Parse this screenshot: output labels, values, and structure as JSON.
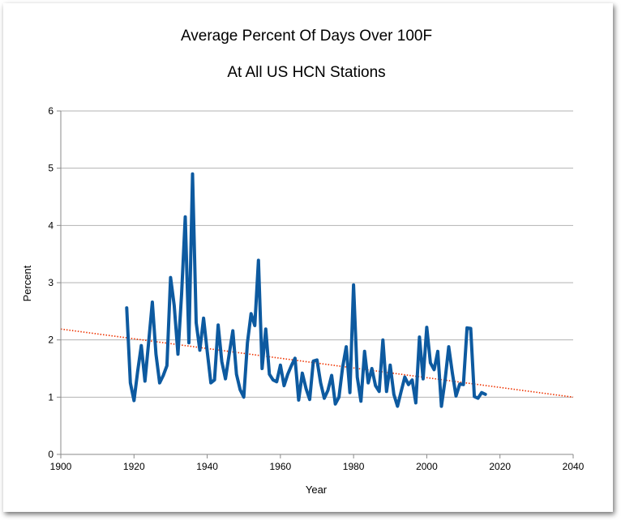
{
  "chart_data": {
    "type": "line",
    "title": "Average Percent Of Days Over 100F",
    "subtitle": "At All US HCN Stations",
    "xlabel": "Year",
    "ylabel": "Percent",
    "xlim": [
      1900,
      2040
    ],
    "ylim": [
      0,
      6
    ],
    "x_ticks": [
      "1900",
      "1920",
      "1940",
      "1960",
      "1980",
      "2000",
      "2020",
      "2040"
    ],
    "y_ticks": [
      "0",
      "1",
      "2",
      "3",
      "4",
      "5",
      "6"
    ],
    "grid": "horizontal",
    "legend": "none",
    "series": [
      {
        "color": "#0d5aa0",
        "points": [
          [
            1918,
            2.56
          ],
          [
            1919,
            1.25
          ],
          [
            1920,
            0.94
          ],
          [
            1921,
            1.45
          ],
          [
            1922,
            1.9
          ],
          [
            1923,
            1.28
          ],
          [
            1924,
            1.95
          ],
          [
            1925,
            2.66
          ],
          [
            1926,
            1.75
          ],
          [
            1927,
            1.25
          ],
          [
            1928,
            1.38
          ],
          [
            1929,
            1.55
          ],
          [
            1930,
            3.09
          ],
          [
            1931,
            2.6
          ],
          [
            1932,
            1.75
          ],
          [
            1933,
            2.8
          ],
          [
            1934,
            4.15
          ],
          [
            1935,
            1.95
          ],
          [
            1936,
            4.9
          ],
          [
            1937,
            2.3
          ],
          [
            1938,
            1.82
          ],
          [
            1939,
            2.38
          ],
          [
            1940,
            1.8
          ],
          [
            1941,
            1.25
          ],
          [
            1942,
            1.3
          ],
          [
            1943,
            2.26
          ],
          [
            1944,
            1.62
          ],
          [
            1945,
            1.32
          ],
          [
            1946,
            1.75
          ],
          [
            1947,
            2.16
          ],
          [
            1948,
            1.4
          ],
          [
            1949,
            1.13
          ],
          [
            1950,
            1.0
          ],
          [
            1951,
            1.95
          ],
          [
            1952,
            2.46
          ],
          [
            1953,
            2.25
          ],
          [
            1954,
            3.39
          ],
          [
            1955,
            1.5
          ],
          [
            1956,
            2.19
          ],
          [
            1957,
            1.4
          ],
          [
            1958,
            1.3
          ],
          [
            1959,
            1.27
          ],
          [
            1960,
            1.56
          ],
          [
            1961,
            1.2
          ],
          [
            1962,
            1.4
          ],
          [
            1963,
            1.55
          ],
          [
            1964,
            1.68
          ],
          [
            1965,
            0.95
          ],
          [
            1966,
            1.42
          ],
          [
            1967,
            1.15
          ],
          [
            1968,
            0.96
          ],
          [
            1969,
            1.63
          ],
          [
            1970,
            1.65
          ],
          [
            1971,
            1.25
          ],
          [
            1972,
            0.98
          ],
          [
            1973,
            1.12
          ],
          [
            1974,
            1.38
          ],
          [
            1975,
            0.88
          ],
          [
            1976,
            1.0
          ],
          [
            1977,
            1.52
          ],
          [
            1978,
            1.88
          ],
          [
            1979,
            1.08
          ],
          [
            1980,
            2.96
          ],
          [
            1981,
            1.35
          ],
          [
            1982,
            0.93
          ],
          [
            1983,
            1.8
          ],
          [
            1984,
            1.25
          ],
          [
            1985,
            1.5
          ],
          [
            1986,
            1.2
          ],
          [
            1987,
            1.1
          ],
          [
            1988,
            2.0
          ],
          [
            1989,
            1.1
          ],
          [
            1990,
            1.56
          ],
          [
            1991,
            1.05
          ],
          [
            1992,
            0.84
          ],
          [
            1993,
            1.1
          ],
          [
            1994,
            1.35
          ],
          [
            1995,
            1.22
          ],
          [
            1996,
            1.3
          ],
          [
            1997,
            0.9
          ],
          [
            1998,
            2.05
          ],
          [
            1999,
            1.32
          ],
          [
            2000,
            2.22
          ],
          [
            2001,
            1.6
          ],
          [
            2002,
            1.48
          ],
          [
            2003,
            1.8
          ],
          [
            2004,
            0.84
          ],
          [
            2005,
            1.3
          ],
          [
            2006,
            1.88
          ],
          [
            2007,
            1.42
          ],
          [
            2008,
            1.02
          ],
          [
            2009,
            1.23
          ],
          [
            2010,
            1.22
          ],
          [
            2011,
            2.21
          ],
          [
            2012,
            2.2
          ],
          [
            2013,
            1.01
          ],
          [
            2014,
            0.98
          ],
          [
            2015,
            1.08
          ],
          [
            2016,
            1.05
          ]
        ]
      }
    ],
    "trendline": {
      "style": "dotted",
      "color": "#ee3300",
      "points": [
        [
          1900,
          2.19
        ],
        [
          2040,
          1.0
        ]
      ]
    }
  }
}
